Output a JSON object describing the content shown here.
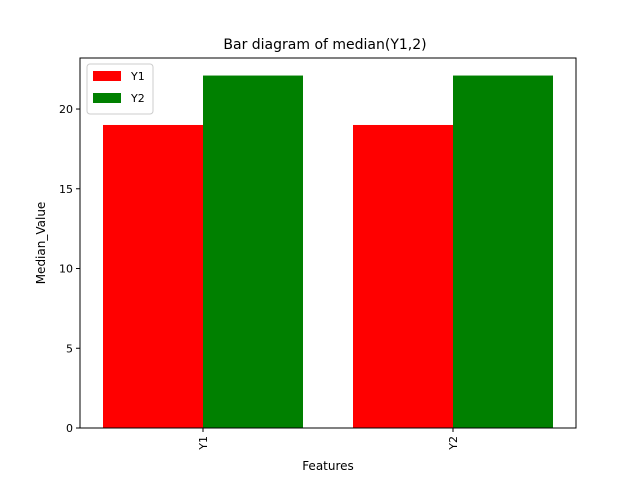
{
  "chart_data": {
    "type": "bar",
    "title": "Bar diagram of median(Y1,2)",
    "xlabel": "Features",
    "ylabel": "Median_Value",
    "categories": [
      "Y1",
      "Y2"
    ],
    "series": [
      {
        "name": "Y1",
        "color": "#ff0000",
        "values": [
          19.0,
          19.0
        ]
      },
      {
        "name": "Y2",
        "color": "#008000",
        "values": [
          22.1,
          22.1
        ]
      }
    ],
    "ylim": [
      0,
      23.2
    ],
    "yticks": [
      0,
      5,
      10,
      15,
      20
    ],
    "grid": false,
    "legend_position": "top-left",
    "x_tick_rotation": "vertical"
  }
}
